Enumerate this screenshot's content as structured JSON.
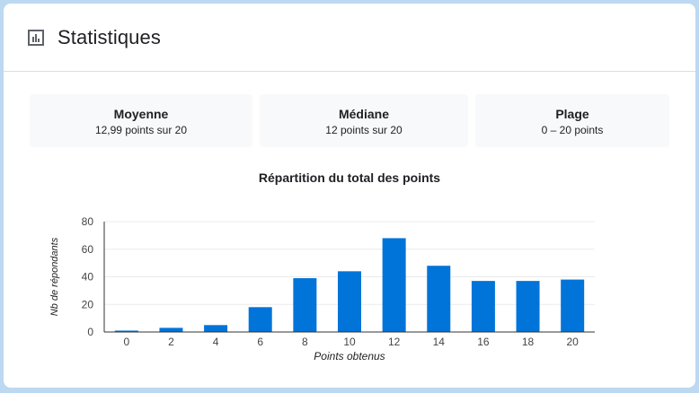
{
  "header": {
    "title": "Statistiques",
    "icon": "bar-chart-icon"
  },
  "stats": [
    {
      "label": "Moyenne",
      "value": "12,99 points sur 20"
    },
    {
      "label": "Médiane",
      "value": "12 points sur 20"
    },
    {
      "label": "Plage",
      "value": "0 – 20 points"
    }
  ],
  "chart_data": {
    "type": "bar",
    "title": "Répartition du total des points",
    "xlabel": "Points obtenus",
    "ylabel": "Nb de répondants",
    "categories": [
      "0",
      "2",
      "4",
      "6",
      "8",
      "10",
      "12",
      "14",
      "16",
      "18",
      "20"
    ],
    "values": [
      1,
      3,
      5,
      18,
      39,
      44,
      68,
      48,
      37,
      37,
      38
    ],
    "ylim": [
      0,
      80
    ],
    "yticks": [
      "0",
      "20",
      "40",
      "60",
      "80"
    ],
    "grid": true,
    "bar_color": "#0074d9"
  }
}
